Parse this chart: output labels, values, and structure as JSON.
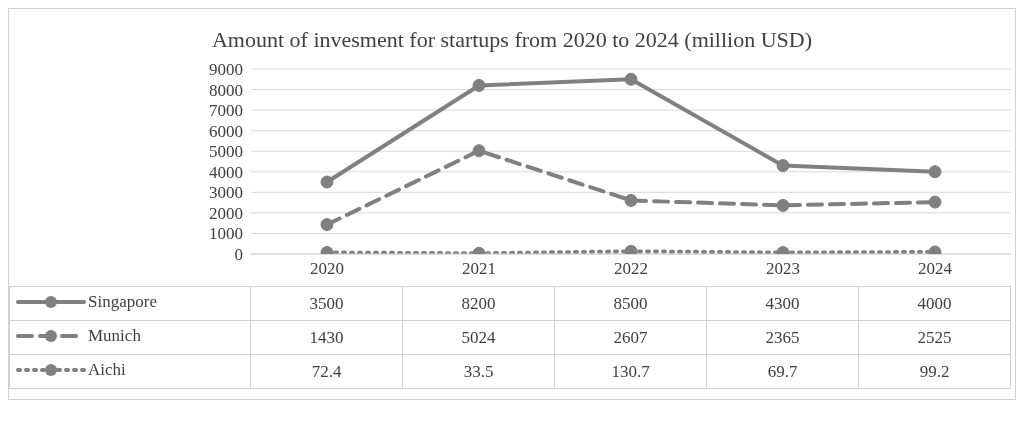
{
  "chart_data": {
    "type": "line",
    "title": "Amount of invesment for startups from 2020 to 2024 (million USD)",
    "categories": [
      "2020",
      "2021",
      "2022",
      "2023",
      "2024"
    ],
    "series": [
      {
        "name": "Singapore",
        "color": "#808080",
        "values": [
          3500,
          8200,
          8500,
          4300,
          4000
        ],
        "line_style": "solid"
      },
      {
        "name": "Munich",
        "color": "#808080",
        "values": [
          1430,
          5024,
          2607,
          2365,
          2525
        ],
        "line_style": "dashed"
      },
      {
        "name": "Aichi",
        "color": "#808080",
        "values": [
          72.4,
          33.5,
          130.7,
          69.7,
          99.2
        ],
        "line_style": "dotted"
      }
    ],
    "ylim": [
      0,
      9000
    ],
    "yticks": [
      0,
      1000,
      2000,
      3000,
      4000,
      5000,
      6000,
      7000,
      8000,
      9000
    ],
    "grid": "y",
    "legend": "bottom",
    "marker": "circle",
    "data_labels": true
  }
}
